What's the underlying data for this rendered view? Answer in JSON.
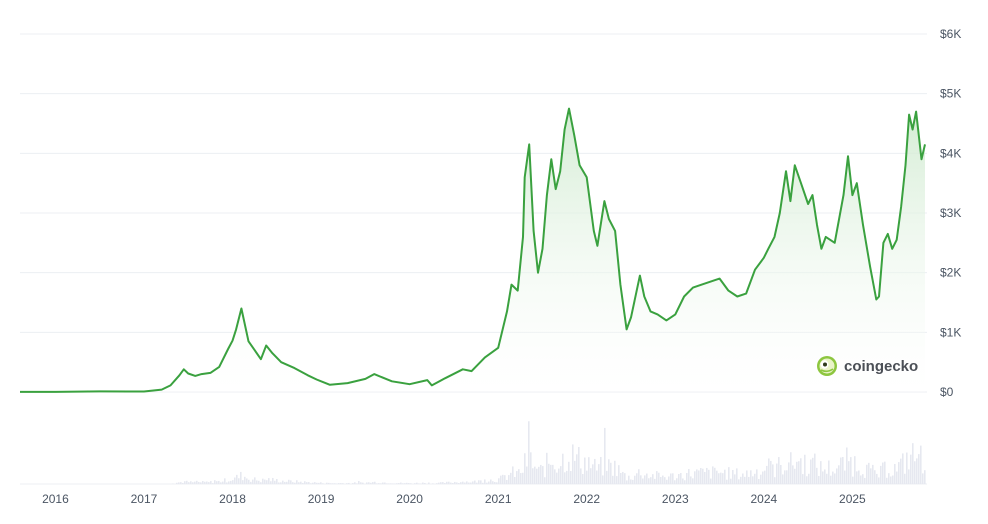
{
  "chart_data": {
    "type": "area",
    "watermark": "coingecko",
    "y_ticks": [
      "$0",
      "$1K",
      "$2K",
      "$3K",
      "$4K",
      "$5K",
      "$6K"
    ],
    "y_tick_values": [
      0,
      1000,
      2000,
      3000,
      4000,
      5000,
      6000
    ],
    "ylim": [
      0,
      6000
    ],
    "x_ticks": [
      "2016",
      "2017",
      "2018",
      "2019",
      "2020",
      "2021",
      "2022",
      "2023",
      "2024",
      "2025"
    ],
    "x_tick_values": [
      2016,
      2017,
      2018,
      2019,
      2020,
      2021,
      2022,
      2023,
      2024,
      2025
    ],
    "xlim": [
      2015.6,
      2025.82
    ],
    "grid": true,
    "colors": {
      "line": "#3aa13f",
      "area_top": "#cfeacf",
      "volume": "#e6e8f0",
      "grid": "#eceff3"
    },
    "series": [
      {
        "x": [
          2015.6,
          2016.0,
          2016.5,
          2017.0,
          2017.2,
          2017.3,
          2017.4,
          2017.45,
          2017.5,
          2017.58,
          2017.65,
          2017.75,
          2017.85,
          2017.95,
          2018.0,
          2018.04,
          2018.1,
          2018.18,
          2018.25,
          2018.32,
          2018.38,
          2018.45,
          2018.55,
          2018.7,
          2018.85,
          2018.95,
          2019.1,
          2019.3,
          2019.5,
          2019.6,
          2019.8,
          2020.0,
          2020.2,
          2020.25,
          2020.4,
          2020.6,
          2020.7,
          2020.85,
          2021.0,
          2021.1,
          2021.15,
          2021.22,
          2021.28,
          2021.3,
          2021.35,
          2021.4,
          2021.45,
          2021.5,
          2021.55,
          2021.6,
          2021.65,
          2021.7,
          2021.75,
          2021.8,
          2021.86,
          2021.92,
          2022.0,
          2022.08,
          2022.12,
          2022.2,
          2022.25,
          2022.32,
          2022.38,
          2022.45,
          2022.5,
          2022.6,
          2022.65,
          2022.72,
          2022.8,
          2022.9,
          2023.0,
          2023.1,
          2023.2,
          2023.3,
          2023.4,
          2023.5,
          2023.6,
          2023.7,
          2023.8,
          2023.9,
          2024.0,
          2024.05,
          2024.12,
          2024.18,
          2024.25,
          2024.3,
          2024.35,
          2024.42,
          2024.5,
          2024.55,
          2024.6,
          2024.65,
          2024.7,
          2024.8,
          2024.9,
          2024.95,
          2025.0,
          2025.05,
          2025.12,
          2025.2,
          2025.27,
          2025.3,
          2025.35,
          2025.4,
          2025.45,
          2025.5,
          2025.55,
          2025.6,
          2025.64,
          2025.68,
          2025.72,
          2025.78,
          2025.82
        ],
        "y": [
          1,
          1,
          10,
          8,
          40,
          110,
          280,
          380,
          310,
          270,
          300,
          320,
          420,
          720,
          860,
          1050,
          1400,
          850,
          700,
          550,
          780,
          650,
          500,
          400,
          280,
          210,
          120,
          150,
          220,
          300,
          180,
          130,
          200,
          110,
          230,
          380,
          350,
          580,
          740,
          1350,
          1800,
          1700,
          2600,
          3600,
          4150,
          2700,
          2000,
          2400,
          3300,
          3900,
          3400,
          3700,
          4400,
          4750,
          4300,
          3800,
          3600,
          2700,
          2450,
          3200,
          2900,
          2700,
          1800,
          1050,
          1250,
          1950,
          1600,
          1350,
          1300,
          1200,
          1300,
          1600,
          1750,
          1800,
          1850,
          1900,
          1700,
          1600,
          1650,
          2050,
          2250,
          2400,
          2600,
          3000,
          3700,
          3200,
          3800,
          3500,
          3150,
          3300,
          2800,
          2400,
          2600,
          2500,
          3300,
          3950,
          3300,
          3500,
          2800,
          2100,
          1550,
          1600,
          2500,
          2650,
          2400,
          2550,
          3100,
          3800,
          4650,
          4400,
          4700,
          3900,
          4150
        ]
      }
    ]
  }
}
